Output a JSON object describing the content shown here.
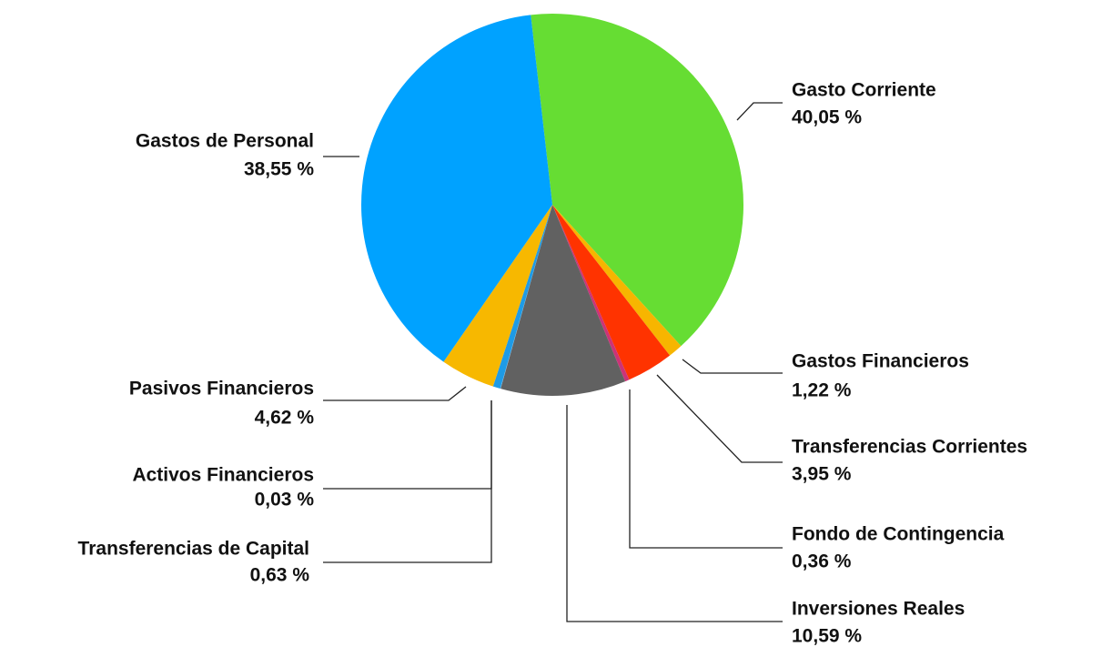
{
  "chart_data": {
    "type": "pie",
    "categories": [
      "Gasto Corriente",
      "Gastos Financieros",
      "Transferencias Corrientes",
      "Fondo de Contingencia",
      "Inversiones Reales",
      "Activos Financieros",
      "Transferencias de Capital",
      "Pasivos Financieros",
      "Gastos de Personal"
    ],
    "values": [
      40.05,
      1.22,
      3.95,
      0.36,
      10.59,
      0.03,
      0.63,
      4.62,
      38.55
    ],
    "value_labels": [
      "40,05 %",
      "1,22 %",
      "3,95 %",
      "0,36 %",
      "10,59 %",
      "0,03 %",
      "0,63 %",
      "4,62 %",
      "38,55 %"
    ],
    "colors": [
      "#66dd33",
      "#f7b500",
      "#ff3300",
      "#cc3377",
      "#616161",
      "#7fb3d9",
      "#1e9be6",
      "#f7b800",
      "#00a2ff"
    ]
  }
}
